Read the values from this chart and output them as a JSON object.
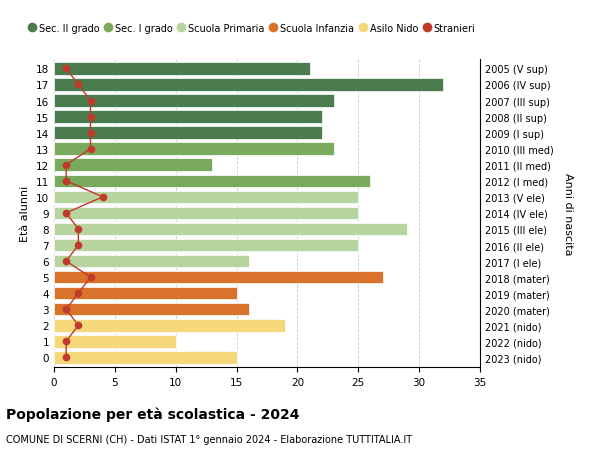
{
  "ages": [
    18,
    17,
    16,
    15,
    14,
    13,
    12,
    11,
    10,
    9,
    8,
    7,
    6,
    5,
    4,
    3,
    2,
    1,
    0
  ],
  "right_labels": [
    "2005 (V sup)",
    "2006 (IV sup)",
    "2007 (III sup)",
    "2008 (II sup)",
    "2009 (I sup)",
    "2010 (III med)",
    "2011 (II med)",
    "2012 (I med)",
    "2013 (V ele)",
    "2014 (IV ele)",
    "2015 (III ele)",
    "2016 (II ele)",
    "2017 (I ele)",
    "2018 (mater)",
    "2019 (mater)",
    "2020 (mater)",
    "2021 (nido)",
    "2022 (nido)",
    "2023 (nido)"
  ],
  "bar_values": [
    21,
    32,
    23,
    22,
    22,
    23,
    13,
    26,
    25,
    25,
    29,
    25,
    16,
    27,
    15,
    16,
    19,
    10,
    15
  ],
  "bar_colors": [
    "#4a7c4e",
    "#4a7c4e",
    "#4a7c4e",
    "#4a7c4e",
    "#4a7c4e",
    "#7aaa5e",
    "#7aaa5e",
    "#7aaa5e",
    "#b8d49e",
    "#b8d49e",
    "#b8d49e",
    "#b8d49e",
    "#b8d49e",
    "#d9722a",
    "#d9722a",
    "#d9722a",
    "#f5d87a",
    "#f5d87a",
    "#f5d87a"
  ],
  "stranieri_values": [
    1,
    2,
    3,
    3,
    3,
    3,
    1,
    1,
    4,
    1,
    2,
    2,
    1,
    3,
    2,
    1,
    2,
    1,
    1
  ],
  "stranieri_color": "#c0392b",
  "title": "Popolazione per età scolastica - 2024",
  "subtitle": "COMUNE DI SCERNI (CH) - Dati ISTAT 1° gennaio 2024 - Elaborazione TUTTITALIA.IT",
  "ylabel_left": "Età alunni",
  "ylabel_right": "Anni di nascita",
  "xlim": [
    0,
    35
  ],
  "xticks": [
    0,
    5,
    10,
    15,
    20,
    25,
    30,
    35
  ],
  "legend_labels": [
    "Sec. II grado",
    "Sec. I grado",
    "Scuola Primaria",
    "Scuola Infanzia",
    "Asilo Nido",
    "Stranieri"
  ],
  "legend_colors": [
    "#4a7c4e",
    "#7aaa5e",
    "#b8d49e",
    "#d9722a",
    "#f5d87a",
    "#c0392b"
  ],
  "bg_color": "#ffffff",
  "grid_color": "#cccccc",
  "bar_height": 0.78
}
